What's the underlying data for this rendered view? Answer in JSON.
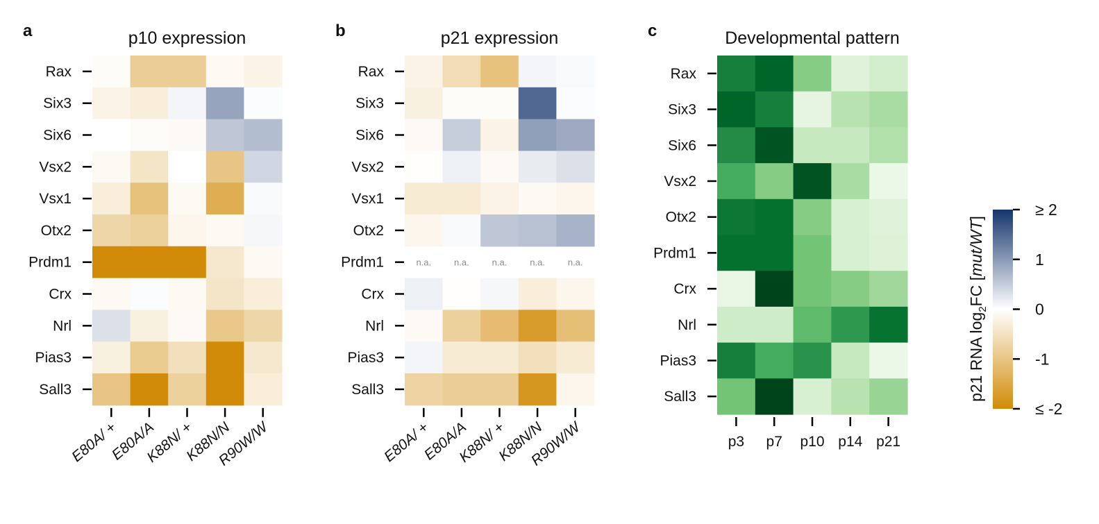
{
  "chart_data": [
    {
      "type": "heatmap",
      "panel_letter": "a",
      "title": "p10 expression",
      "rows": [
        "Rax",
        "Six3",
        "Six6",
        "Vsx2",
        "Vsx1",
        "Otx2",
        "Prdm1",
        "Crx",
        "Nrl",
        "Pias3",
        "Sall3"
      ],
      "columns": [
        "E80A/ +",
        "E80A/A",
        "K88N/ +",
        "K88N/N",
        "R90W/W"
      ],
      "values": [
        [
          -0.05,
          -0.85,
          -0.85,
          -0.1,
          -0.2
        ],
        [
          -0.2,
          -0.3,
          0.1,
          0.9,
          0.03
        ],
        [
          0.0,
          -0.05,
          -0.08,
          0.55,
          0.65
        ],
        [
          -0.1,
          -0.45,
          0.0,
          -1.0,
          0.4
        ],
        [
          -0.3,
          -1.05,
          -0.1,
          -1.4,
          0.05
        ],
        [
          -0.7,
          -0.8,
          -0.15,
          -0.1,
          0.08
        ],
        [
          -2.0,
          -2.0,
          -2.0,
          -0.4,
          -0.1
        ],
        [
          -0.1,
          0.03,
          -0.1,
          -0.45,
          -0.3
        ],
        [
          0.3,
          -0.25,
          -0.08,
          -0.95,
          -0.7
        ],
        [
          -0.25,
          -0.9,
          -0.55,
          -2.0,
          -0.4
        ],
        [
          -1.0,
          -2.0,
          -0.8,
          -2.0,
          -0.3
        ]
      ],
      "na": [],
      "scale": "diverging",
      "vmin": -2,
      "vmax": 2
    },
    {
      "type": "heatmap",
      "panel_letter": "b",
      "title": "p21 expression",
      "rows": [
        "Rax",
        "Six3",
        "Six6",
        "Vsx2",
        "Vsx1",
        "Otx2",
        "Prdm1",
        "Crx",
        "Nrl",
        "Pias3",
        "Sall3"
      ],
      "columns": [
        "E80A/ +",
        "E80A/A",
        "K88N/ +",
        "K88N/N",
        "R90W/W"
      ],
      "values": [
        [
          -0.2,
          -0.6,
          -1.05,
          0.1,
          0.05
        ],
        [
          -0.25,
          -0.06,
          -0.05,
          1.5,
          0.03
        ],
        [
          -0.08,
          0.5,
          -0.2,
          0.95,
          0.85
        ],
        [
          -0.02,
          0.15,
          -0.08,
          0.2,
          0.3
        ],
        [
          -0.35,
          -0.35,
          -0.2,
          -0.1,
          -0.15
        ],
        [
          -0.15,
          0.05,
          0.55,
          0.6,
          0.75
        ],
        [
          null,
          null,
          null,
          null,
          null
        ],
        [
          0.15,
          -0.02,
          0.08,
          -0.3,
          -0.15
        ],
        [
          -0.08,
          -0.8,
          -1.15,
          -1.7,
          -1.1
        ],
        [
          0.1,
          -0.35,
          -0.35,
          -0.55,
          -0.35
        ],
        [
          -0.75,
          -0.85,
          -0.85,
          -1.8,
          -0.15
        ]
      ],
      "na": [
        [
          6,
          0
        ],
        [
          6,
          1
        ],
        [
          6,
          2
        ],
        [
          6,
          3
        ],
        [
          6,
          4
        ]
      ],
      "na_label": "n.a.",
      "scale": "diverging",
      "vmin": -2,
      "vmax": 2
    },
    {
      "type": "heatmap",
      "panel_letter": "c",
      "title": "Developmental pattern",
      "rows": [
        "Rax",
        "Six3",
        "Six6",
        "Vsx2",
        "Otx2",
        "Prdm1",
        "Crx",
        "Nrl",
        "Pias3",
        "Sall3"
      ],
      "columns": [
        "p3",
        "p7",
        "p10",
        "p14",
        "p21"
      ],
      "values": [
        [
          0.8,
          0.9,
          0.45,
          0.15,
          0.2
        ],
        [
          0.9,
          0.8,
          0.12,
          0.3,
          0.35
        ],
        [
          0.75,
          0.95,
          0.25,
          0.25,
          0.32
        ],
        [
          0.62,
          0.45,
          0.95,
          0.35,
          0.08
        ],
        [
          0.83,
          0.86,
          0.45,
          0.18,
          0.15
        ],
        [
          0.86,
          0.86,
          0.5,
          0.18,
          0.16
        ],
        [
          0.1,
          1.0,
          0.5,
          0.45,
          0.38
        ],
        [
          0.22,
          0.22,
          0.55,
          0.7,
          0.85
        ],
        [
          0.8,
          0.62,
          0.72,
          0.25,
          0.08
        ],
        [
          0.5,
          1.0,
          0.18,
          0.3,
          0.4
        ]
      ],
      "scale": "sequential-green",
      "vmin": 0,
      "vmax": 1
    }
  ],
  "colorbar": {
    "label_prefix": "p21 RNA log",
    "label_sub": "2",
    "label_mid": "FC [",
    "label_italic": "mut/WT",
    "label_suffix": "]",
    "ticks": [
      {
        "value": 2,
        "label": "≥ 2"
      },
      {
        "value": 1,
        "label": "1"
      },
      {
        "value": 0,
        "label": "0"
      },
      {
        "value": -1,
        "label": "-1"
      },
      {
        "value": -2,
        "label": "≤ -2"
      }
    ]
  },
  "colors": {
    "neg": "#d18b08",
    "mid": "#ffffff",
    "pos": "#15356d",
    "green_low": "#f7fcf5",
    "green_high": "#00441b",
    "na_text": "#8a8a8a"
  }
}
